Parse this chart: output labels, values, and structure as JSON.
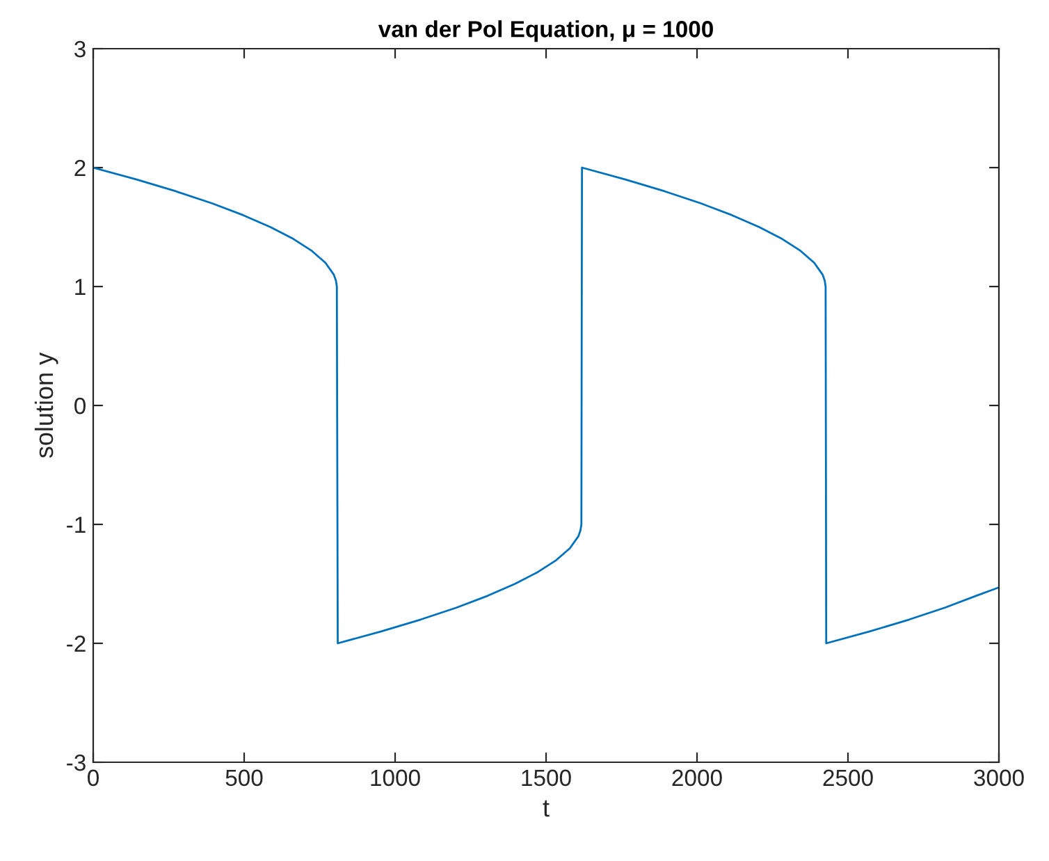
{
  "chart_data": {
    "type": "line",
    "title": "van der Pol Equation, μ = 1000",
    "xlabel": "t",
    "ylabel": "solution y",
    "x": [
      0,
      144,
      275,
      393,
      497,
      587,
      663,
      724,
      769,
      797,
      804,
      807,
      810,
      954,
      1085,
      1203,
      1307,
      1397,
      1473,
      1534,
      1579,
      1607,
      1614,
      1617,
      1619,
      1763,
      1894,
      2012,
      2116,
      2206,
      2282,
      2343,
      2388,
      2416,
      2423,
      2426,
      2428,
      2572,
      2703,
      2821,
      2925,
      3000
    ],
    "series": [
      {
        "color": "#0072bd",
        "values": [
          2,
          1.9,
          1.8,
          1.7,
          1.6,
          1.5,
          1.4,
          1.3,
          1.2,
          1.1,
          1.05,
          1.0,
          -2,
          -1.9,
          -1.8,
          -1.7,
          -1.6,
          -1.5,
          -1.4,
          -1.3,
          -1.2,
          -1.1,
          -1.05,
          -1.0,
          2,
          1.9,
          1.8,
          1.7,
          1.6,
          1.5,
          1.4,
          1.3,
          1.2,
          1.1,
          1.05,
          1.0,
          -2,
          -1.9,
          -1.8,
          -1.7,
          -1.6,
          -1.53
        ]
      }
    ],
    "xlim": [
      0,
      3000
    ],
    "xticks": [
      0,
      500,
      1000,
      1500,
      2000,
      2500,
      3000
    ],
    "ylim": [
      -3,
      3
    ],
    "yticks": [
      -3,
      -2,
      -1,
      0,
      1,
      2,
      3
    ],
    "grid": false,
    "legend": false,
    "marker": "none",
    "line_style": "solid"
  }
}
